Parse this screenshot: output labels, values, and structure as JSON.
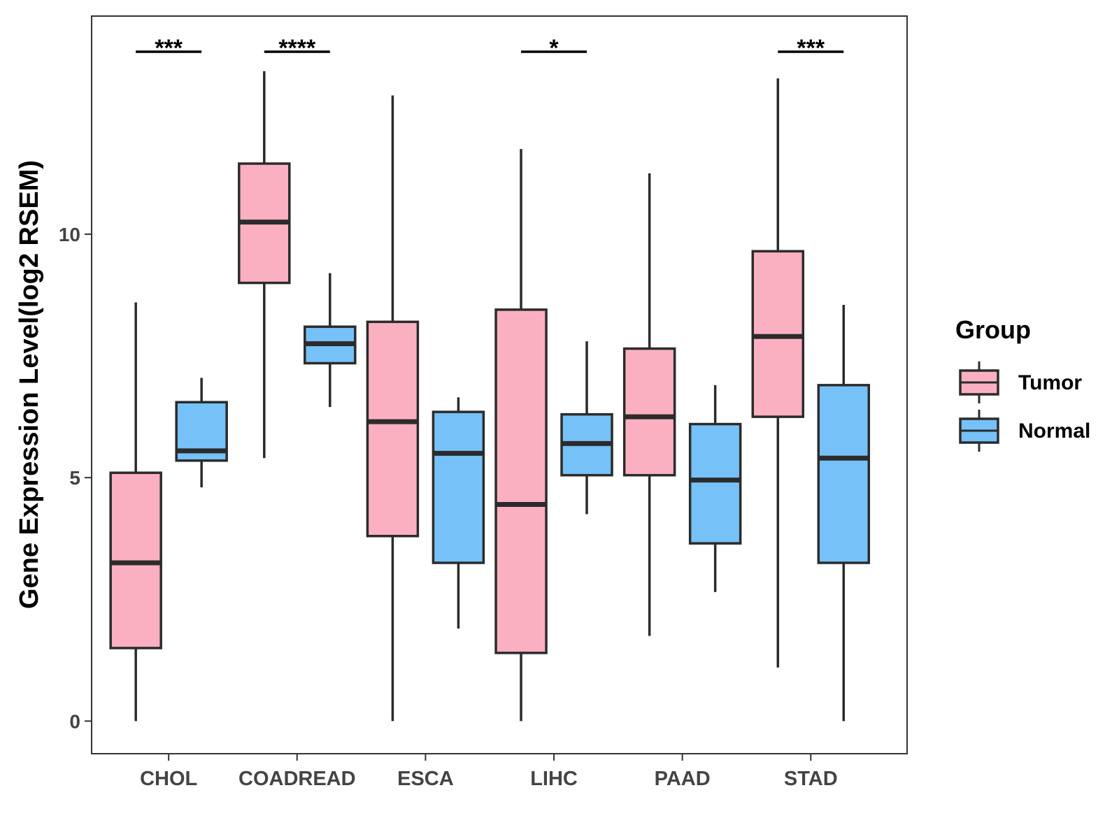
{
  "chart_data": {
    "type": "boxplot",
    "title": "",
    "xlabel": "",
    "ylabel": "Gene Expression Level(log2 RSEM)",
    "ylim": [
      -0.67,
      14.48
    ],
    "yticks": [
      0,
      5,
      10
    ],
    "ytick_labels": [
      "0",
      "5",
      "10"
    ],
    "grid": false,
    "categories": [
      "CHOL",
      "COADREAD",
      "ESCA",
      "LIHC",
      "PAAD",
      "STAD"
    ],
    "legend": {
      "title": "Group",
      "position": "right",
      "entries": [
        {
          "name": "Tumor",
          "color": "#FBB0C1"
        },
        {
          "name": "Normal",
          "color": "#76C1F7"
        }
      ]
    },
    "series": [
      {
        "name": "Tumor",
        "color": "#FBB0C1",
        "boxes": [
          {
            "category": "CHOL",
            "min": 0.0,
            "q1": 1.5,
            "median": 3.25,
            "q3": 5.1,
            "max": 8.6
          },
          {
            "category": "COADREAD",
            "min": 5.4,
            "q1": 9.0,
            "median": 10.25,
            "q3": 11.45,
            "max": 13.35
          },
          {
            "category": "ESCA",
            "min": 0.0,
            "q1": 3.8,
            "median": 6.15,
            "q3": 8.2,
            "max": 12.85
          },
          {
            "category": "LIHC",
            "min": 0.0,
            "q1": 1.4,
            "median": 4.45,
            "q3": 8.45,
            "max": 11.75
          },
          {
            "category": "PAAD",
            "min": 1.75,
            "q1": 5.05,
            "median": 6.25,
            "q3": 7.65,
            "max": 11.25
          },
          {
            "category": "STAD",
            "min": 1.1,
            "q1": 6.25,
            "median": 7.9,
            "q3": 9.65,
            "max": 13.2
          }
        ]
      },
      {
        "name": "Normal",
        "color": "#76C1F7",
        "boxes": [
          {
            "category": "CHOL",
            "min": 4.8,
            "q1": 5.35,
            "median": 5.55,
            "q3": 6.55,
            "max": 7.05
          },
          {
            "category": "COADREAD",
            "min": 6.45,
            "q1": 7.35,
            "median": 7.75,
            "q3": 8.1,
            "max": 9.2
          },
          {
            "category": "ESCA",
            "min": 1.9,
            "q1": 3.25,
            "median": 5.5,
            "q3": 6.35,
            "max": 6.65
          },
          {
            "category": "LIHC",
            "min": 4.25,
            "q1": 5.05,
            "median": 5.7,
            "q3": 6.3,
            "max": 7.8
          },
          {
            "category": "PAAD",
            "min": 2.65,
            "q1": 3.65,
            "median": 4.95,
            "q3": 6.1,
            "max": 6.9
          },
          {
            "category": "STAD",
            "min": 0.0,
            "q1": 3.25,
            "median": 5.4,
            "q3": 6.9,
            "max": 8.55
          }
        ]
      }
    ],
    "significance": [
      {
        "category": "CHOL",
        "label": "***"
      },
      {
        "category": "COADREAD",
        "label": "****"
      },
      {
        "category": "LIHC",
        "label": "*"
      },
      {
        "category": "STAD",
        "label": "***"
      }
    ]
  }
}
